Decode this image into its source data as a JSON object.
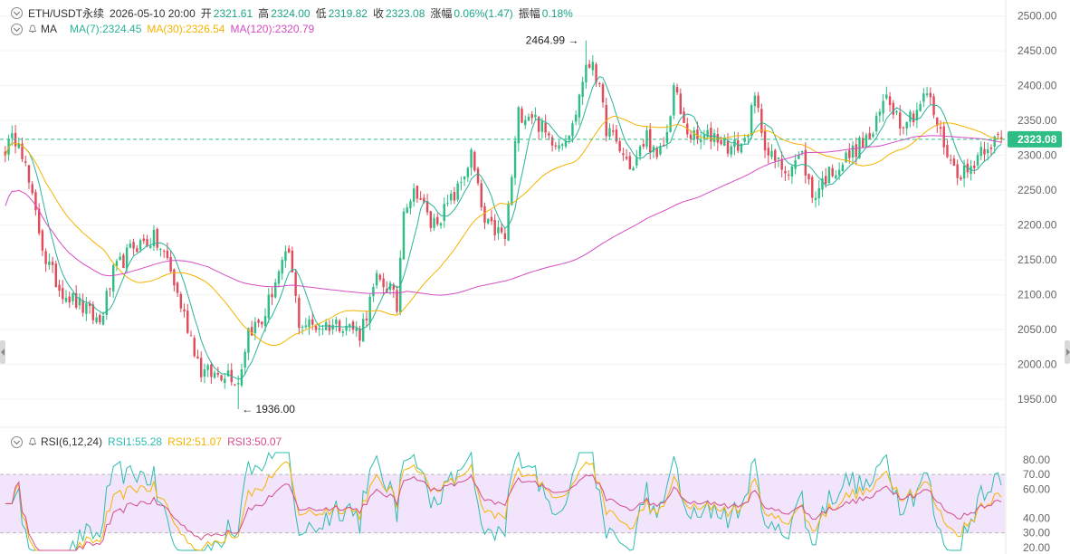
{
  "header": {
    "symbol": "ETH/USDT永续",
    "datetime": "2026-05-10 20:00",
    "open_label": "开",
    "open": "2321.61",
    "high_label": "高",
    "high": "2324.00",
    "low_label": "低",
    "low": "2319.82",
    "close_label": "收",
    "close": "2323.08",
    "change_label": "涨幅",
    "change": "0.06%(1.47)",
    "amp_label": "振幅",
    "amp": "0.18%"
  },
  "ma_legend": {
    "title": "MA",
    "ma7": "MA(7):2324.45",
    "ma30": "MA(30):2326.54",
    "ma120": "MA(120):2320.79"
  },
  "rsi_legend": {
    "title": "RSI(6,12,24)",
    "rsi1": "RSI1:55.28",
    "rsi2": "RSI2:51.07",
    "rsi3": "RSI3:50.07"
  },
  "colors": {
    "up": "#2ebd85",
    "down": "#e04a59",
    "ma7": "#2ab39a",
    "ma30": "#f5b400",
    "ma120": "#d44cc4",
    "rsi1": "#2ebdb0",
    "rsi2": "#f5b400",
    "rsi3": "#d44c8c",
    "rsi_band": "#f1e4fb",
    "last_price_bg": "#2ebd85",
    "axis_text": "#666666"
  },
  "chart_data": [
    {
      "type": "candlestick",
      "title": "ETH/USDT永续",
      "price_axis": {
        "ticks": [
          1950,
          2000,
          2050,
          2100,
          2150,
          2200,
          2250,
          2300,
          2350,
          2400,
          2450,
          2500
        ],
        "tick_labels": [
          "1950.00",
          "2000.00",
          "2050.00",
          "2100.00",
          "2150.00",
          "2200.00",
          "2250.00",
          "2300.00",
          "2350.00",
          "2400.00",
          "2450.00",
          "2500.00"
        ],
        "range": [
          1915,
          2510
        ]
      },
      "last_price": 2323.08,
      "last_price_label": "2323.08",
      "annotations": [
        {
          "text": "2464.99",
          "price": 2464.99,
          "bar": 172,
          "kind": "high"
        },
        {
          "text": "1936.00",
          "price": 1936.0,
          "bar": 69,
          "kind": "low"
        }
      ],
      "anchor_closes": [
        [
          0,
          2310
        ],
        [
          4,
          2330
        ],
        [
          8,
          2235
        ],
        [
          12,
          2150
        ],
        [
          16,
          2110
        ],
        [
          22,
          2085
        ],
        [
          28,
          2060
        ],
        [
          32,
          2130
        ],
        [
          38,
          2170
        ],
        [
          44,
          2180
        ],
        [
          48,
          2150
        ],
        [
          51,
          2100
        ],
        [
          55,
          2040
        ],
        [
          58,
          1990
        ],
        [
          62,
          1985
        ],
        [
          66,
          1990
        ],
        [
          69,
          1975
        ],
        [
          72,
          2050
        ],
        [
          76,
          2060
        ],
        [
          80,
          2120
        ],
        [
          84,
          2160
        ],
        [
          87,
          2060
        ],
        [
          92,
          2055
        ],
        [
          100,
          2060
        ],
        [
          105,
          2045
        ],
        [
          110,
          2120
        ],
        [
          114,
          2110
        ],
        [
          116,
          2080
        ],
        [
          118,
          2230
        ],
        [
          122,
          2250
        ],
        [
          126,
          2200
        ],
        [
          130,
          2220
        ],
        [
          134,
          2250
        ],
        [
          138,
          2300
        ],
        [
          142,
          2200
        ],
        [
          146,
          2190
        ],
        [
          148,
          2180
        ],
        [
          152,
          2360
        ],
        [
          156,
          2360
        ],
        [
          160,
          2330
        ],
        [
          164,
          2320
        ],
        [
          168,
          2340
        ],
        [
          171,
          2410
        ],
        [
          174,
          2440
        ],
        [
          178,
          2340
        ],
        [
          183,
          2300
        ],
        [
          186,
          2280
        ],
        [
          190,
          2330
        ],
        [
          193,
          2290
        ],
        [
          196,
          2330
        ],
        [
          198,
          2400
        ],
        [
          201,
          2340
        ],
        [
          205,
          2320
        ],
        [
          210,
          2330
        ],
        [
          215,
          2310
        ],
        [
          219,
          2320
        ],
        [
          222,
          2380
        ],
        [
          226,
          2300
        ],
        [
          231,
          2280
        ],
        [
          236,
          2300
        ],
        [
          239,
          2240
        ],
        [
          243,
          2270
        ],
        [
          248,
          2290
        ],
        [
          252,
          2310
        ],
        [
          257,
          2330
        ],
        [
          261,
          2390
        ],
        [
          265,
          2350
        ],
        [
          269,
          2360
        ],
        [
          273,
          2390
        ],
        [
          277,
          2330
        ],
        [
          281,
          2280
        ],
        [
          285,
          2275
        ],
        [
          289,
          2310
        ],
        [
          292,
          2320
        ],
        [
          295,
          2323
        ]
      ],
      "series": [
        {
          "name": "MA(7)",
          "value": 2324.45
        },
        {
          "name": "MA(30)",
          "value": 2326.54
        },
        {
          "name": "MA(120)",
          "value": 2320.79
        }
      ]
    },
    {
      "type": "line",
      "title": "RSI(6,12,24)",
      "ylim": [
        18,
        85
      ],
      "ticks": [
        20,
        30,
        40,
        60,
        70,
        80
      ],
      "tick_labels": [
        "20.00",
        "30.00",
        "40.00",
        "60.00",
        "70.00",
        "80.00"
      ],
      "band": [
        30,
        70
      ],
      "series": [
        {
          "name": "RSI1",
          "value": 55.28
        },
        {
          "name": "RSI2",
          "value": 51.07
        },
        {
          "name": "RSI3",
          "value": 50.07
        }
      ]
    }
  ]
}
